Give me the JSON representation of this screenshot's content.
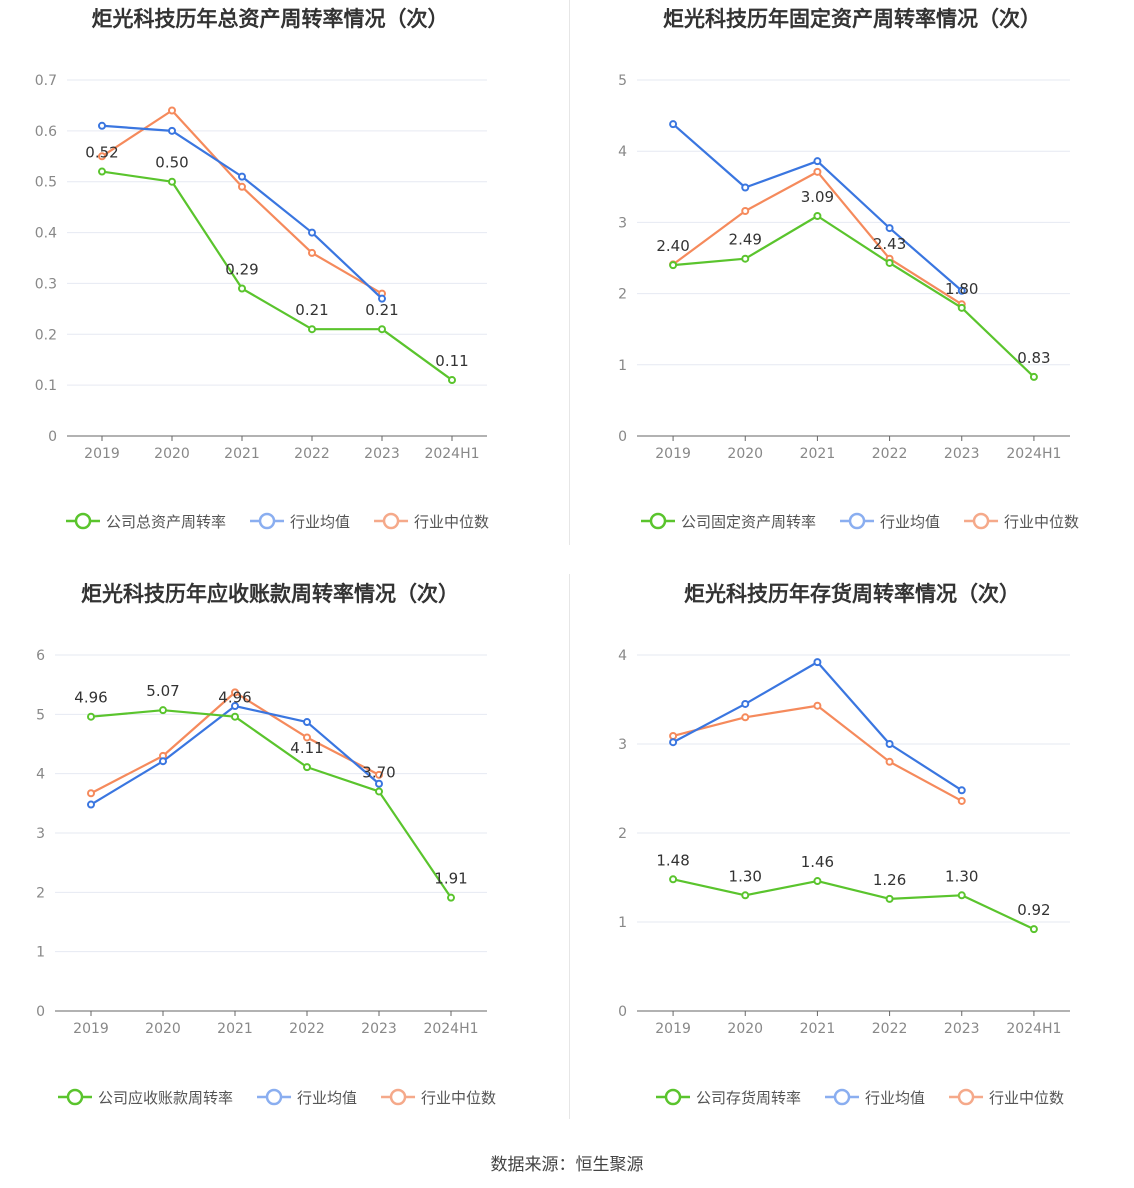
{
  "colors": {
    "company": "#5ac42d",
    "avg": "#3a76e0",
    "median": "#f58a5c"
  },
  "source": "数据来源：恒生聚源",
  "chart_data": [
    {
      "type": "line",
      "title": "炬光科技历年总资产周转率情况（次）",
      "categories": [
        "2019",
        "2020",
        "2021",
        "2022",
        "2023",
        "2024H1"
      ],
      "ylim": [
        0,
        0.7
      ],
      "yticks": [
        "0",
        "0.1",
        "0.2",
        "0.3",
        "0.4",
        "0.5",
        "0.6",
        "0.7"
      ],
      "series": [
        {
          "name": "公司总资产周转率",
          "values": [
            0.52,
            0.5,
            0.29,
            0.21,
            0.21,
            0.11
          ],
          "labels": [
            "0.52",
            "0.50",
            "0.29",
            "0.21",
            "0.21",
            "0.11"
          ]
        },
        {
          "name": "行业均值",
          "values": [
            0.61,
            0.6,
            0.51,
            0.4,
            0.27,
            null
          ]
        },
        {
          "name": "行业中位数",
          "values": [
            0.55,
            0.64,
            0.49,
            0.36,
            0.28,
            null
          ]
        }
      ]
    },
    {
      "type": "line",
      "title": "炬光科技历年固定资产周转率情况（次）",
      "categories": [
        "2019",
        "2020",
        "2021",
        "2022",
        "2023",
        "2024H1"
      ],
      "ylim": [
        0,
        5
      ],
      "yticks": [
        "0",
        "1",
        "2",
        "3",
        "4",
        "5"
      ],
      "series": [
        {
          "name": "公司固定资产周转率",
          "values": [
            2.4,
            2.49,
            3.09,
            2.43,
            1.8,
            0.83
          ],
          "labels": [
            "2.40",
            "2.49",
            "3.09",
            "2.43",
            "1.80",
            "0.83"
          ]
        },
        {
          "name": "行业均值",
          "values": [
            4.38,
            3.49,
            3.86,
            2.92,
            2.04,
            null
          ]
        },
        {
          "name": "行业中位数",
          "values": [
            2.41,
            3.16,
            3.71,
            2.49,
            1.85,
            null
          ]
        }
      ]
    },
    {
      "type": "line",
      "title": "炬光科技历年应收账款周转率情况（次）",
      "categories": [
        "2019",
        "2020",
        "2021",
        "2022",
        "2023",
        "2024H1"
      ],
      "ylim": [
        0,
        6
      ],
      "yticks": [
        "0",
        "1",
        "2",
        "3",
        "4",
        "5",
        "6"
      ],
      "series": [
        {
          "name": "公司应收账款周转率",
          "values": [
            4.96,
            5.07,
            4.96,
            4.11,
            3.7,
            1.91
          ],
          "labels": [
            "4.96",
            "5.07",
            "4.96",
            "4.11",
            "3.70",
            "1.91"
          ]
        },
        {
          "name": "行业均值",
          "values": [
            3.48,
            4.21,
            5.14,
            4.87,
            3.83,
            null
          ]
        },
        {
          "name": "行业中位数",
          "values": [
            3.67,
            4.3,
            5.37,
            4.61,
            3.98,
            null
          ]
        }
      ]
    },
    {
      "type": "line",
      "title": "炬光科技历年存货周转率情况（次）",
      "categories": [
        "2019",
        "2020",
        "2021",
        "2022",
        "2023",
        "2024H1"
      ],
      "ylim": [
        0,
        4
      ],
      "yticks": [
        "0",
        "1",
        "2",
        "3",
        "4"
      ],
      "series": [
        {
          "name": "公司存货周转率",
          "values": [
            1.48,
            1.3,
            1.46,
            1.26,
            1.3,
            0.92
          ],
          "labels": [
            "1.48",
            "1.30",
            "1.46",
            "1.26",
            "1.30",
            "0.92"
          ]
        },
        {
          "name": "行业均值",
          "values": [
            3.02,
            3.45,
            3.92,
            3.0,
            2.48,
            null
          ]
        },
        {
          "name": "行业中位数",
          "values": [
            3.09,
            3.3,
            3.43,
            2.8,
            2.36,
            null
          ]
        }
      ]
    }
  ]
}
